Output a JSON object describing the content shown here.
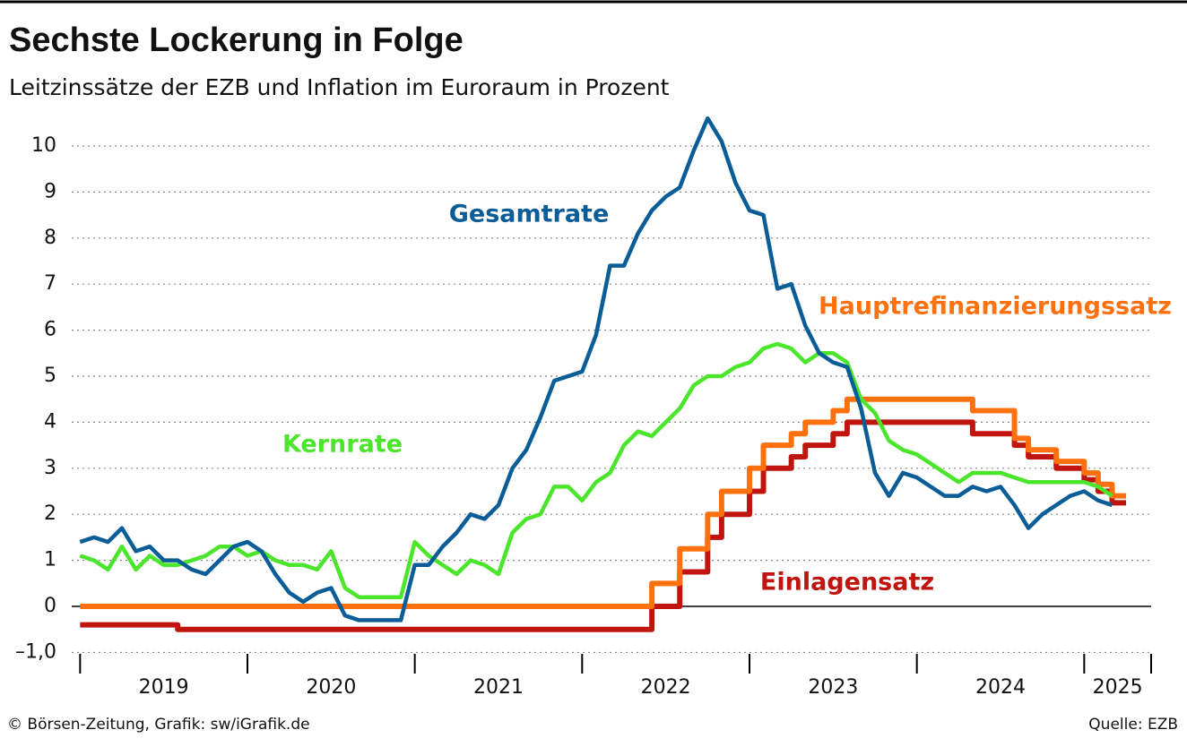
{
  "chart_data": {
    "type": "line",
    "title": "Sechste Lockerung in Folge",
    "subtitle": "Leitzinssätze der EZB und Inflation im Euroraum in Prozent",
    "source": "Quelle: EZB",
    "credit": "© Börsen-Zeitung, Grafik: sw/iGrafik.de",
    "x": [
      2019,
      2019.0833,
      2019.1667,
      2019.25,
      2019.3333,
      2019.4167,
      2019.5,
      2019.5833,
      2019.6667,
      2019.75,
      2019.8333,
      2019.9167,
      2020,
      2020.0833,
      2020.1667,
      2020.25,
      2020.3333,
      2020.4167,
      2020.5,
      2020.5833,
      2020.6667,
      2020.75,
      2020.8333,
      2020.9167,
      2021,
      2021.0833,
      2021.1667,
      2021.25,
      2021.3333,
      2021.4167,
      2021.5,
      2021.5833,
      2021.6667,
      2021.75,
      2021.8333,
      2021.9167,
      2022,
      2022.0833,
      2022.1667,
      2022.25,
      2022.3333,
      2022.4167,
      2022.5,
      2022.5833,
      2022.6667,
      2022.75,
      2022.8333,
      2022.9167,
      2023,
      2023.0833,
      2023.1667,
      2023.25,
      2023.3333,
      2023.4167,
      2023.5,
      2023.5833,
      2023.6667,
      2023.75,
      2023.8333,
      2023.9167,
      2024,
      2024.0833,
      2024.1667,
      2024.25,
      2024.3333,
      2024.4167,
      2024.5,
      2024.5833,
      2024.6667,
      2024.75,
      2024.8333,
      2024.9167,
      2025,
      2025.0833,
      2025.1667,
      2025.25
    ],
    "series": [
      {
        "name": "Gesamtrate",
        "color": "#0b5d98",
        "values": [
          1.4,
          1.5,
          1.4,
          1.7,
          1.2,
          1.3,
          1.0,
          1.0,
          0.8,
          0.7,
          1.0,
          1.3,
          1.4,
          1.2,
          0.7,
          0.3,
          0.1,
          0.3,
          0.4,
          -0.2,
          -0.3,
          -0.3,
          -0.3,
          -0.3,
          0.9,
          0.9,
          1.3,
          1.6,
          2.0,
          1.9,
          2.2,
          3.0,
          3.4,
          4.1,
          4.9,
          5.0,
          5.1,
          5.9,
          7.4,
          7.4,
          8.1,
          8.6,
          8.9,
          9.1,
          9.9,
          10.6,
          10.1,
          9.2,
          8.6,
          8.5,
          6.9,
          7.0,
          6.1,
          5.5,
          5.3,
          5.2,
          4.3,
          2.9,
          2.4,
          2.9,
          2.8,
          2.6,
          2.4,
          2.4,
          2.6,
          2.5,
          2.6,
          2.2,
          1.7,
          2.0,
          2.2,
          2.4,
          2.5,
          2.3,
          2.2,
          null
        ]
      },
      {
        "name": "Kernrate",
        "color": "#4be62c",
        "values": [
          1.1,
          1.0,
          0.8,
          1.3,
          0.8,
          1.1,
          0.9,
          0.9,
          1.0,
          1.1,
          1.3,
          1.3,
          1.1,
          1.2,
          1.0,
          0.9,
          0.9,
          0.8,
          1.2,
          0.4,
          0.2,
          0.2,
          0.2,
          0.2,
          1.4,
          1.1,
          0.9,
          0.7,
          1.0,
          0.9,
          0.7,
          1.6,
          1.9,
          2.0,
          2.6,
          2.6,
          2.3,
          2.7,
          2.9,
          3.5,
          3.8,
          3.7,
          4.0,
          4.3,
          4.8,
          5.0,
          5.0,
          5.2,
          5.3,
          5.6,
          5.7,
          5.6,
          5.3,
          5.5,
          5.5,
          5.3,
          4.5,
          4.2,
          3.6,
          3.4,
          3.3,
          3.1,
          2.9,
          2.7,
          2.9,
          2.9,
          2.9,
          2.8,
          2.7,
          2.7,
          2.7,
          2.7,
          2.7,
          2.6,
          2.4,
          null
        ]
      },
      {
        "name": "Hauptrefinanzierungssatz",
        "color": "#ff700f",
        "step": true,
        "values": [
          0,
          0,
          0,
          0,
          0,
          0,
          0,
          0,
          0,
          0,
          0,
          0,
          0,
          0,
          0,
          0,
          0,
          0,
          0,
          0,
          0,
          0,
          0,
          0,
          0,
          0,
          0,
          0,
          0,
          0,
          0,
          0,
          0,
          0,
          0,
          0,
          0,
          0,
          0,
          0,
          0,
          0,
          0.5,
          0.5,
          1.25,
          1.25,
          2.0,
          2.5,
          2.5,
          3.0,
          3.5,
          3.5,
          3.75,
          4.0,
          4.0,
          4.25,
          4.5,
          4.5,
          4.5,
          4.5,
          4.5,
          4.5,
          4.5,
          4.5,
          4.5,
          4.25,
          4.25,
          4.25,
          3.65,
          3.4,
          3.4,
          3.15,
          3.15,
          2.9,
          2.65,
          2.4
        ]
      },
      {
        "name": "Einlagensatz",
        "color": "#c0150e",
        "step": true,
        "values": [
          -0.4,
          -0.4,
          -0.4,
          -0.4,
          -0.4,
          -0.4,
          -0.4,
          -0.4,
          -0.5,
          -0.5,
          -0.5,
          -0.5,
          -0.5,
          -0.5,
          -0.5,
          -0.5,
          -0.5,
          -0.5,
          -0.5,
          -0.5,
          -0.5,
          -0.5,
          -0.5,
          -0.5,
          -0.5,
          -0.5,
          -0.5,
          -0.5,
          -0.5,
          -0.5,
          -0.5,
          -0.5,
          -0.5,
          -0.5,
          -0.5,
          -0.5,
          -0.5,
          -0.5,
          -0.5,
          -0.5,
          -0.5,
          -0.5,
          0,
          0,
          0.75,
          0.75,
          1.5,
          2.0,
          2.0,
          2.5,
          3.0,
          3.0,
          3.25,
          3.5,
          3.5,
          3.75,
          4.0,
          4.0,
          4.0,
          4.0,
          4.0,
          4.0,
          4.0,
          4.0,
          4.0,
          3.75,
          3.75,
          3.75,
          3.5,
          3.25,
          3.25,
          3.0,
          3.0,
          2.75,
          2.5,
          2.25
        ]
      }
    ],
    "xlim": [
      2018.95,
      2025.4
    ],
    "xticks": [
      2019,
      2020,
      2021,
      2022,
      2023,
      2024,
      2025
    ],
    "ylim": [
      -1.2,
      10.7
    ],
    "yticks": [
      {
        "value": -1,
        "label": "–1,0"
      },
      0,
      1,
      2,
      3,
      4,
      5,
      6,
      7,
      8,
      9,
      10
    ],
    "grid": true
  }
}
